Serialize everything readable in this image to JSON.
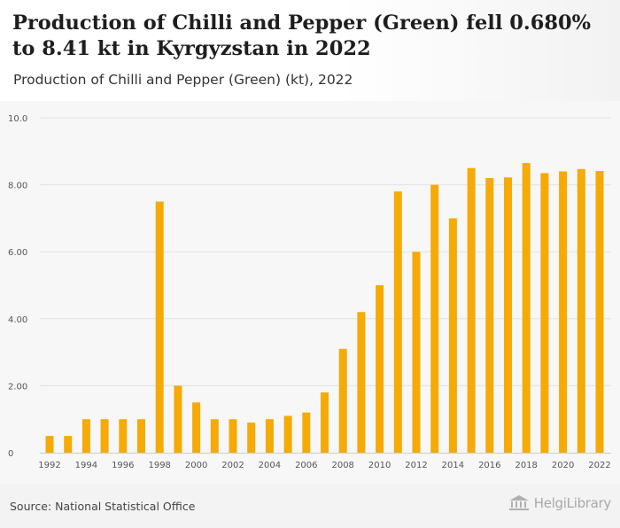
{
  "header": {
    "title": "Production of Chilli and Pepper (Green) fell 0.680% to 8.41 kt in Kyrgyzstan in 2022",
    "subtitle": "Production of Chilli and Pepper (Green) (kt), 2022"
  },
  "footer": {
    "source": "Source: National Statistical Office",
    "logo_text": "HelgiLibrary"
  },
  "colors": {
    "bar": "#f5aa05",
    "grid": "#e2e2e2",
    "axis_text": "#555555",
    "plot_background": "#f7f7f7"
  },
  "chart_data": {
    "type": "bar",
    "title": "Production of Chilli and Pepper (Green) (kt), 2022",
    "xlabel": "",
    "ylabel": "",
    "categories": [
      "1992",
      "1993",
      "1994",
      "1995",
      "1996",
      "1997",
      "1998",
      "1999",
      "2000",
      "2001",
      "2002",
      "2003",
      "2004",
      "2005",
      "2006",
      "2007",
      "2008",
      "2009",
      "2010",
      "2011",
      "2012",
      "2013",
      "2014",
      "2015",
      "2016",
      "2017",
      "2018",
      "2019",
      "2020",
      "2021",
      "2022"
    ],
    "values": [
      0.5,
      0.5,
      1.0,
      1.0,
      1.0,
      1.0,
      7.5,
      2.0,
      1.5,
      1.0,
      1.0,
      0.9,
      1.0,
      1.1,
      1.2,
      1.8,
      3.1,
      4.2,
      5.0,
      7.8,
      6.0,
      8.0,
      7.0,
      8.5,
      8.2,
      8.22,
      8.65,
      8.35,
      8.4,
      8.47,
      8.41
    ],
    "x_tick_labels": [
      "1992",
      "1994",
      "1996",
      "1998",
      "2000",
      "2002",
      "2004",
      "2006",
      "2008",
      "2010",
      "2012",
      "2014",
      "2016",
      "2018",
      "2020",
      "2022"
    ],
    "y_ticks": [
      0,
      2,
      4,
      6,
      8,
      10
    ],
    "y_tick_labels": [
      "0",
      "2.00",
      "4.00",
      "6.00",
      "8.00",
      "10.0"
    ],
    "ylim": [
      0,
      10
    ],
    "grid": true,
    "legend": "none"
  }
}
